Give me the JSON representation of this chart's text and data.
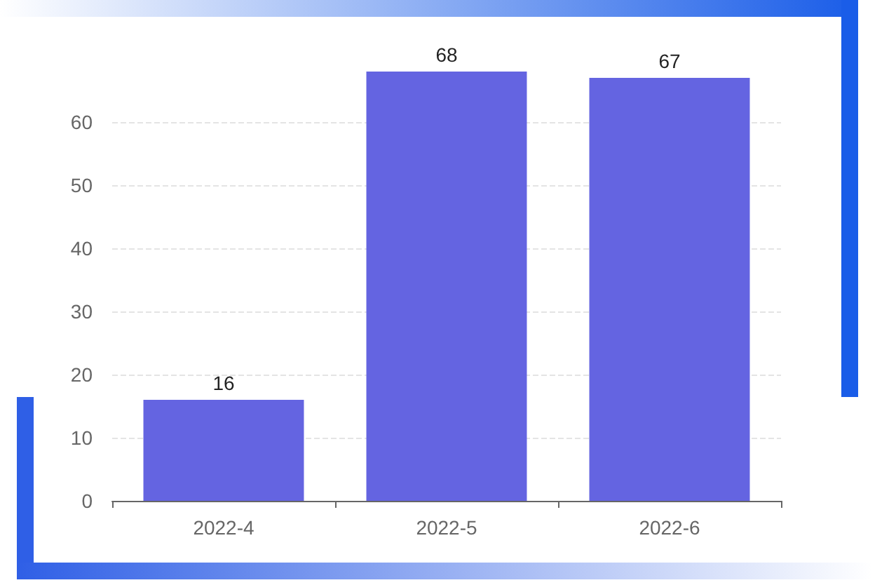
{
  "chart_data": {
    "type": "bar",
    "categories": [
      "2022-4",
      "2022-5",
      "2022-6"
    ],
    "values": [
      16,
      68,
      67
    ],
    "color": "#6464e1",
    "ylim": [
      0,
      68
    ],
    "yticks": [
      0,
      10,
      20,
      30,
      40,
      50,
      60
    ],
    "grid": "y",
    "data_labels": true
  }
}
